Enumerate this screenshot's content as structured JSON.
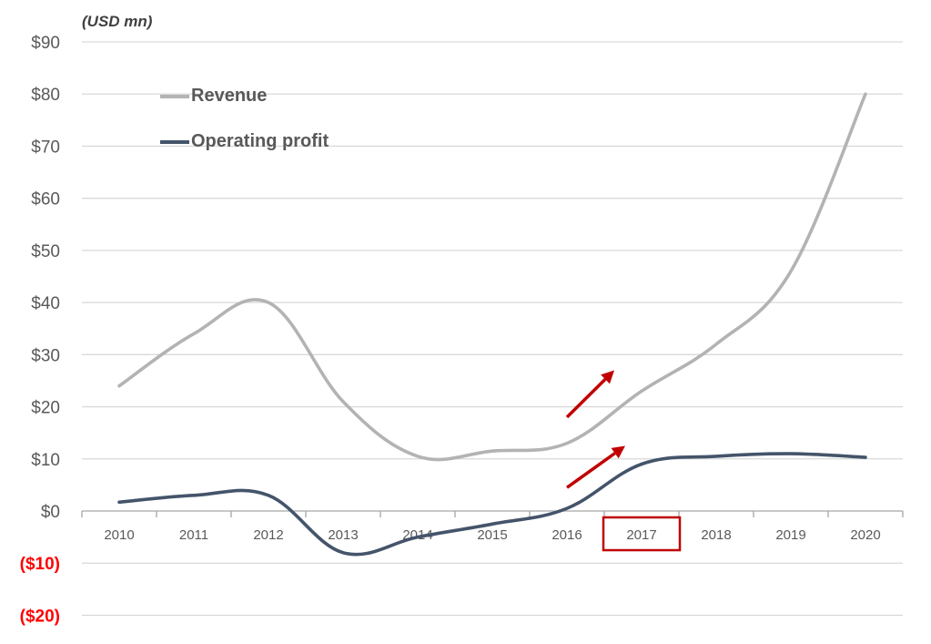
{
  "chart_data": {
    "type": "line",
    "unit_label": "(USD mn)",
    "categories": [
      "2010",
      "2011",
      "2012",
      "2013",
      "2014",
      "2015",
      "2016",
      "2017",
      "2018",
      "2019",
      "2020"
    ],
    "series": [
      {
        "name": "Revenue",
        "color": "#b3b3b3",
        "values": [
          24,
          34,
          40,
          21,
          10.5,
          11.5,
          13,
          23,
          32,
          46,
          80
        ]
      },
      {
        "name": "Operating profit",
        "color": "#44546a",
        "values": [
          1.7,
          3,
          3,
          -8,
          -5,
          -2.5,
          0.5,
          9,
          10.5,
          11,
          10.3
        ]
      }
    ],
    "ylim": [
      -20,
      90
    ],
    "yticks": [
      {
        "value": 90,
        "label": "$90"
      },
      {
        "value": 80,
        "label": "$80"
      },
      {
        "value": 70,
        "label": "$70"
      },
      {
        "value": 60,
        "label": "$60"
      },
      {
        "value": 50,
        "label": "$50"
      },
      {
        "value": 40,
        "label": "$40"
      },
      {
        "value": 30,
        "label": "$30"
      },
      {
        "value": 20,
        "label": "$20"
      },
      {
        "value": 10,
        "label": "$10"
      },
      {
        "value": 0,
        "label": "$0"
      },
      {
        "value": -10,
        "label": "($10)"
      },
      {
        "value": -20,
        "label": "($20)"
      }
    ],
    "negative_tick_color": "#ff0000",
    "tick_color": "#595959",
    "grid": true,
    "legend_position": "top-left",
    "highlighted_category": "2017",
    "annotation_color": "#c00000",
    "annotations": [
      {
        "type": "arrow",
        "category_from": "2016",
        "category_to": "2017",
        "y_from": 18,
        "y_to": 27
      },
      {
        "type": "arrow",
        "category_from": "2016",
        "category_to": "2017",
        "y_from": 4.5,
        "y_to": 12.5
      }
    ]
  }
}
